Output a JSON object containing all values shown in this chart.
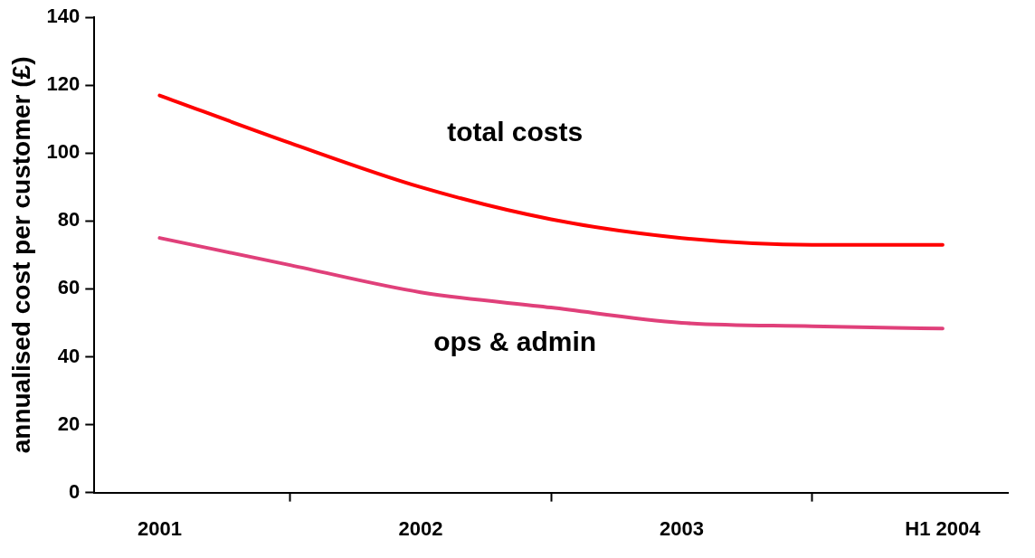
{
  "chart_data": {
    "type": "line",
    "ylabel": "annualised cost per customer (£)",
    "categories": [
      "2001",
      null,
      "2002",
      null,
      "2003",
      null,
      "H1 2004"
    ],
    "series": [
      {
        "name": "total costs",
        "color": "#ff0000",
        "values": [
          117,
          103,
          90,
          80.5,
          75,
          73,
          73
        ]
      },
      {
        "name": "ops & admin",
        "color": "#e0407a",
        "values": [
          75,
          67,
          59,
          54.5,
          50,
          49,
          48.3
        ]
      }
    ],
    "ylim": [
      0,
      140
    ],
    "yticks": [
      0,
      20,
      40,
      60,
      80,
      100,
      120,
      140
    ],
    "grid": false,
    "legend": false,
    "marker": "none",
    "line_style": "solid"
  }
}
